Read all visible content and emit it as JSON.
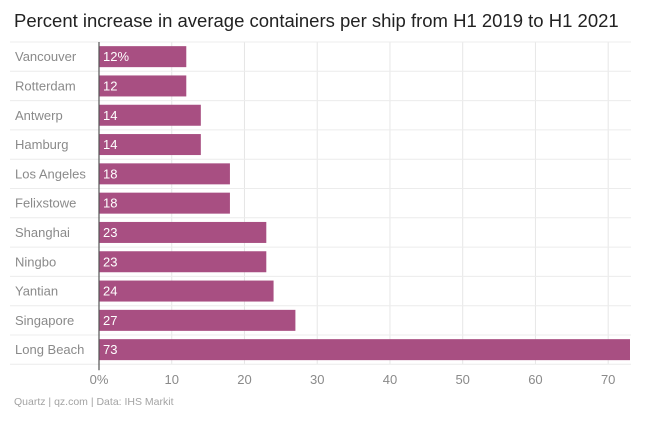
{
  "chart_data": {
    "type": "bar",
    "orientation": "horizontal",
    "title": "Percent increase in average containers per ship from H1 2019 to H1 2021",
    "categories": [
      "Vancouver",
      "Rotterdam",
      "Antwerp",
      "Hamburg",
      "Los Angeles",
      "Felixstowe",
      "Shanghai",
      "Ningbo",
      "Yantian",
      "Singapore",
      "Long Beach"
    ],
    "values": [
      12,
      12,
      14,
      14,
      18,
      18,
      23,
      23,
      24,
      27,
      73
    ],
    "value_labels": [
      "12%",
      "12",
      "14",
      "14",
      "18",
      "18",
      "23",
      "23",
      "24",
      "27",
      "73"
    ],
    "xlim": [
      0,
      73
    ],
    "x_ticks": [
      0,
      10,
      20,
      30,
      40,
      50,
      60,
      70
    ],
    "x_tick_labels": [
      "0%",
      "10",
      "20",
      "30",
      "40",
      "50",
      "60",
      "70"
    ],
    "xlabel": "",
    "ylabel": "",
    "bar_color": "#a84f82",
    "source": "Quartz | qz.com | Data: IHS Markit"
  }
}
